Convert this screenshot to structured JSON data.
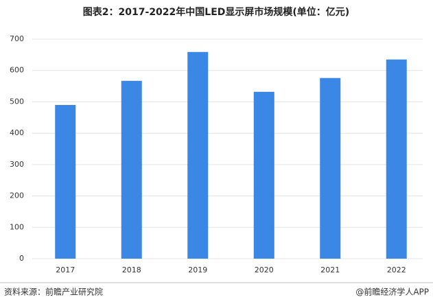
{
  "chart_data": {
    "type": "bar",
    "title": "图表2：2017-2022年中国LED显示屏市场规模(单位：亿元)",
    "categories": [
      "2017",
      "2018",
      "2019",
      "2020",
      "2021",
      "2022"
    ],
    "values": [
      490,
      567,
      659,
      532,
      576,
      635
    ],
    "color": "#3a87e6",
    "ylim": [
      0,
      700
    ],
    "yticks": [
      0,
      100,
      200,
      300,
      400,
      500,
      600,
      700
    ],
    "grid": true,
    "source": "资料来源：前瞻产业研究院",
    "credit": "@前瞻经济学人APP"
  }
}
